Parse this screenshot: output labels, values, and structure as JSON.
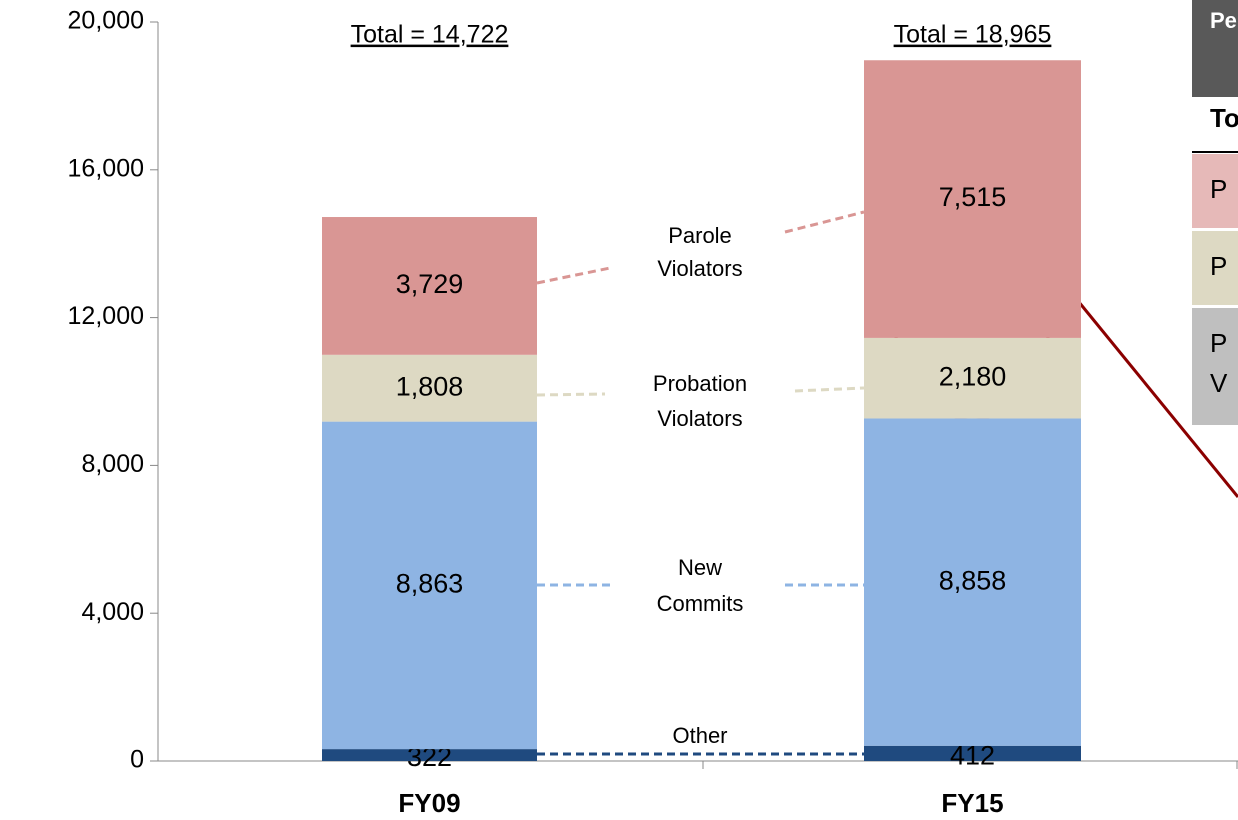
{
  "chart_data": {
    "type": "stacked_bar",
    "categories": [
      "FY09",
      "FY15"
    ],
    "series": [
      {
        "name": "Other",
        "color": "#1f4a7f",
        "values": [
          322,
          412
        ],
        "value_labels": [
          "322",
          "412"
        ]
      },
      {
        "name": "New Commits",
        "color": "#8eb4e3",
        "values": [
          8863,
          8858
        ],
        "value_labels": [
          "8,863",
          "8,858"
        ]
      },
      {
        "name": "Probation Violators",
        "color": "#ddd9c3",
        "values": [
          1808,
          2180
        ],
        "value_labels": [
          "1,808",
          "2,180"
        ]
      },
      {
        "name": "Parole Violators",
        "color": "#d99694",
        "values": [
          3729,
          7515
        ],
        "value_labels": [
          "3,729",
          "7,515"
        ]
      }
    ],
    "totals_labels": [
      "Total = 14,722",
      "Total = 18,965"
    ],
    "ylim": [
      0,
      20000
    ],
    "yticks": [
      0,
      {
        "value": 4000,
        "label": "4,000"
      },
      {
        "value": 8000,
        "label": "8,000"
      },
      {
        "value": 12000,
        "label": "12,000"
      },
      {
        "value": 16000,
        "label": "16,000"
      },
      {
        "value": 20000,
        "label": "20,000"
      }
    ],
    "grid": false
  },
  "panel": {
    "header": "Pe",
    "column": "To",
    "rows": [
      [
        "P"
      ],
      [
        "P"
      ],
      [
        "P",
        "V"
      ]
    ]
  }
}
